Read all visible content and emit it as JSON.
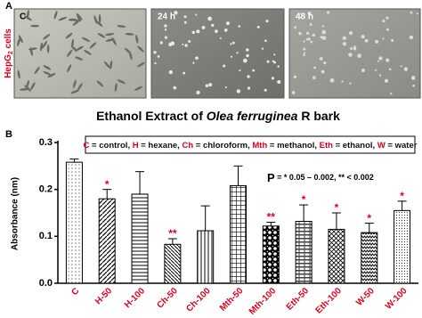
{
  "panel_a": {
    "label": "A",
    "images": [
      "C",
      "24 h",
      "48 h"
    ],
    "side_label": [
      "HepG",
      "2",
      " cells"
    ],
    "caption": [
      "Ethanol Extract of ",
      "Olea ferruginea",
      " R bark"
    ]
  },
  "chart_data": {
    "type": "bar",
    "panel_label": "B",
    "y_label": "Absorbance (nm)",
    "legend_text": [
      {
        "text": "C",
        "color": "#e0001b"
      },
      {
        "text": " = control, ",
        "color": "#111"
      },
      {
        "text": "H",
        "color": "#e0001b"
      },
      {
        "text": " = hexane, ",
        "color": "#111"
      },
      {
        "text": "Ch",
        "color": "#e0001b"
      },
      {
        "text": " = chloroform, ",
        "color": "#111"
      },
      {
        "text": "Mth",
        "color": "#e0001b"
      },
      {
        "text": " = methanol, ",
        "color": "#111"
      },
      {
        "text": "Eth",
        "color": "#e0001b"
      },
      {
        "text": " = ethanol, ",
        "color": "#111"
      },
      {
        "text": "W",
        "color": "#e0001b"
      },
      {
        "text": " = water",
        "color": "#111"
      }
    ],
    "p_note": [
      "P",
      "  = * 0.05 – 0.002, ** < 0.002"
    ],
    "categories": [
      "C",
      "H-50",
      "H-100",
      "Ch-50",
      "Ch-100",
      "Mth-50",
      "Mth-100",
      "Eth-50",
      "Eth-100",
      "W-50",
      "W-100"
    ],
    "values": [
      0.258,
      0.18,
      0.19,
      0.083,
      0.112,
      0.208,
      0.122,
      0.132,
      0.115,
      0.108,
      0.155
    ],
    "errors": [
      0.007,
      0.02,
      0.048,
      0.012,
      0.053,
      0.042,
      0.008,
      0.035,
      0.035,
      0.02,
      0.02
    ],
    "significance": [
      null,
      "*",
      null,
      "**",
      null,
      null,
      "**",
      "*",
      "*",
      "*",
      "*"
    ],
    "category_color": "#e0001b",
    "significance_color": "#e0001b",
    "ylim": [
      0,
      0.3
    ],
    "yticks": [
      {
        "value": 0,
        "label": "0.0"
      },
      0.1,
      0.2,
      0.3
    ]
  }
}
